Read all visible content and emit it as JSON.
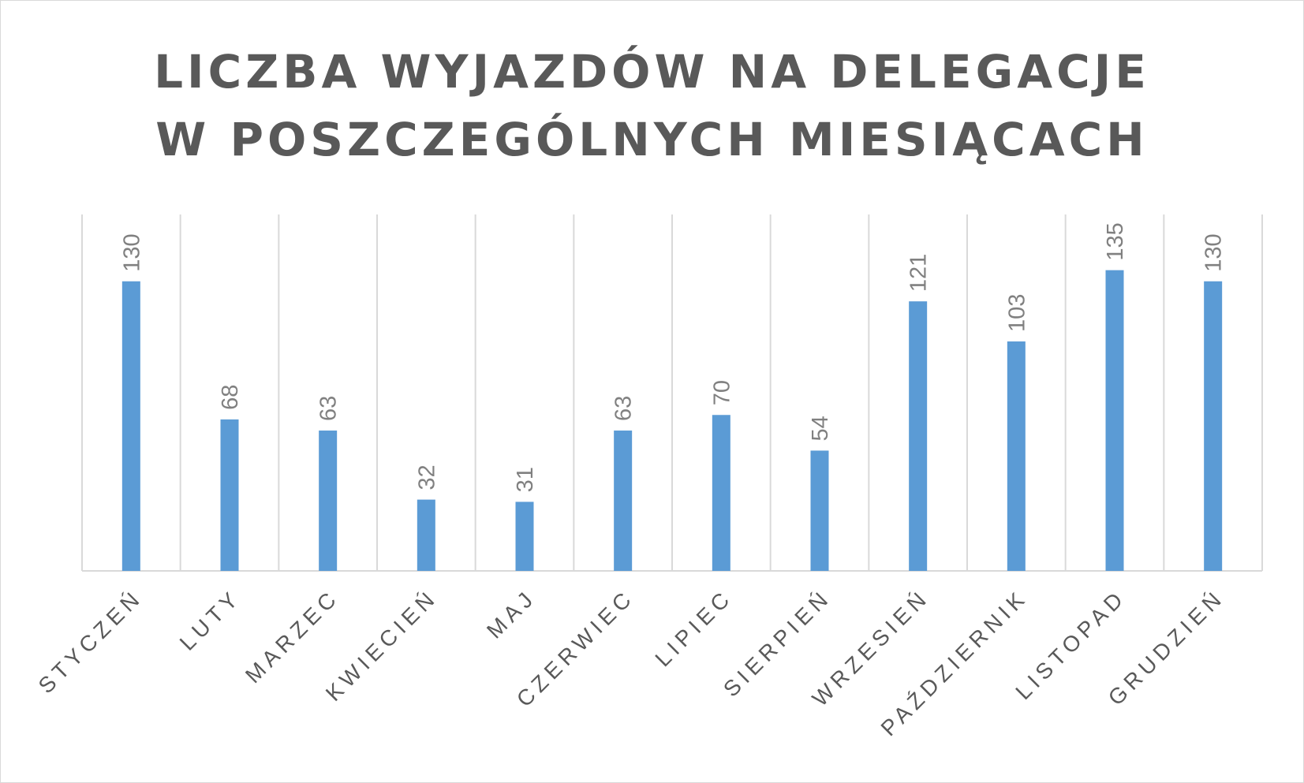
{
  "chart_data": {
    "type": "bar",
    "title": [
      "LICZBA WYJAZDÓW NA DELEGACJE",
      "W POSZCZEGÓLNYCH MIESIĄCACH"
    ],
    "categories": [
      "STYCZEŃ",
      "LUTY",
      "MARZEC",
      "KWIECIEŃ",
      "MAJ",
      "CZERWIEC",
      "LIPIEC",
      "SIERPIEŃ",
      "WRZESIEŃ",
      "PAŹDZIERNIK",
      "LISTOPAD",
      "GRUDZIEŃ"
    ],
    "values": [
      130,
      68,
      63,
      32,
      31,
      63,
      70,
      54,
      121,
      103,
      135,
      130
    ],
    "ylim": [
      0,
      160
    ],
    "grid": "vertical",
    "legend": "none",
    "bar_color": "#5b9bd5",
    "grid_color": "#d9d9d9",
    "data_labels": true
  }
}
